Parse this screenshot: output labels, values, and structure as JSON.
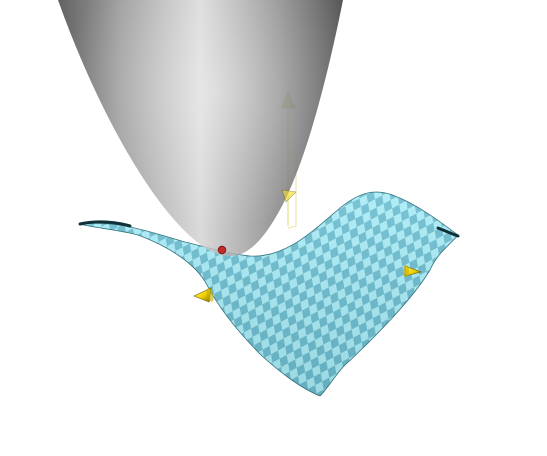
{
  "viewport": {
    "background": "#ffffff"
  },
  "scene": {
    "paraboloid": {
      "icon": "paraboloid-surface",
      "color_light": "#c6c6c6",
      "color_dark": "#4a4a4a",
      "opacity": 0.82
    },
    "surface": {
      "icon": "checkered-saddle-surface",
      "color_light": "#a9ecf6",
      "color_dark": "#6cbdd0",
      "edge_color": "#0f3138"
    },
    "contact_point": {
      "icon": "contact-point-marker",
      "color": "#c42b2b"
    },
    "gizmo": {
      "icon": "translate-gizmo-arrow",
      "color": "#d9d27a"
    },
    "handles": {
      "icon": "control-cone-handle",
      "color": "#f2d300",
      "count": 3
    }
  }
}
